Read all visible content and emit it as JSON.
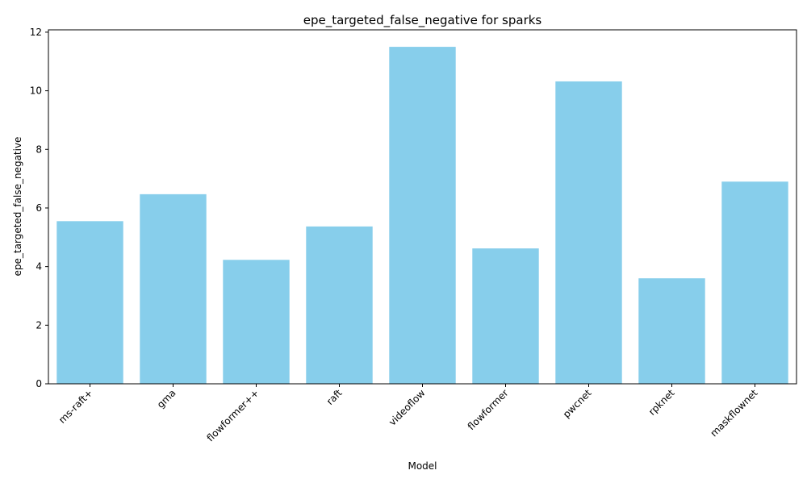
{
  "chart_data": {
    "type": "bar",
    "title": "epe_targeted_false_negative for sparks",
    "xlabel": "Model",
    "ylabel": "epe_targeted_false_negative",
    "categories": [
      "ms-raft+",
      "gma",
      "flowformer++",
      "raft",
      "videoflow",
      "flowformer",
      "pwcnet",
      "rpknet",
      "maskflownet"
    ],
    "values": [
      5.55,
      6.47,
      4.23,
      5.37,
      11.5,
      4.62,
      10.32,
      3.6,
      6.9
    ],
    "ylim": [
      0,
      12.08
    ],
    "yticks": [
      0,
      2,
      4,
      6,
      8,
      10,
      12
    ],
    "grid": false,
    "legend": "none",
    "colors": {
      "bar": "#87ceeb",
      "axis": "#000000",
      "background": "#ffffff"
    }
  }
}
